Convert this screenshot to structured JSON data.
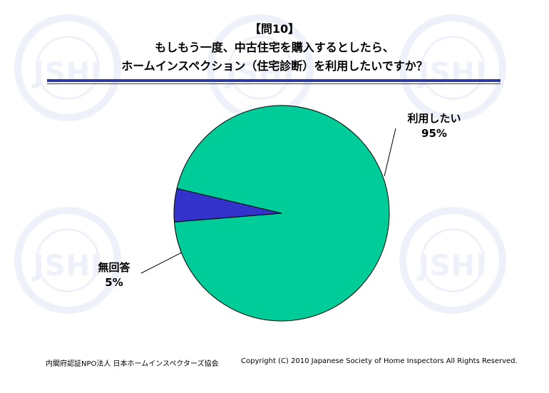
{
  "header": {
    "tag": "【問10】",
    "line1": "もしもう一度、中古住宅を購入するとしたら、",
    "line2": "ホームインスペクション（住宅診断）を利用したいですか？"
  },
  "watermark": {
    "text": "JSHI"
  },
  "chart_data": {
    "type": "pie",
    "slices": [
      {
        "label": "利用したい",
        "value": 95,
        "display": "95%",
        "color": "#00cc99"
      },
      {
        "label": "無回答",
        "value": 5,
        "display": "5%",
        "color": "#3333cc"
      }
    ]
  },
  "footer": {
    "left": "内閣府認証NPO法人 日本ホームインスペクターズ協会",
    "right": "Copyright (C) 2010 Japanese Society of Home Inspectors All Rights Reserved."
  }
}
